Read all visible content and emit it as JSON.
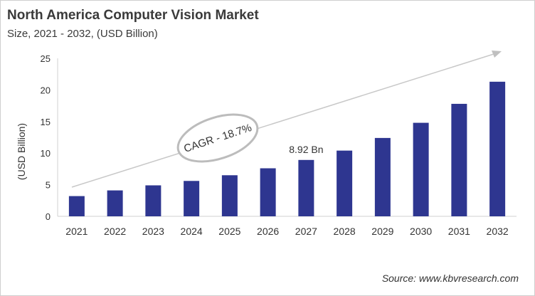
{
  "chart_data": {
    "type": "bar",
    "title": "North America Computer Vision Market",
    "subtitle": "Size, 2021 - 2032, (USD Billion)",
    "xlabel": "",
    "ylabel": "(USD Billion)",
    "categories": [
      "2021",
      "2022",
      "2023",
      "2024",
      "2025",
      "2026",
      "2027",
      "2028",
      "2029",
      "2030",
      "2031",
      "2032"
    ],
    "values": [
      3.2,
      4.1,
      4.9,
      5.6,
      6.5,
      7.6,
      8.92,
      10.4,
      12.4,
      14.8,
      17.8,
      21.3
    ],
    "ylim": [
      0,
      25
    ],
    "yticks": [
      0,
      5,
      10,
      15,
      20,
      25
    ],
    "grid": false,
    "bar_color": "#2e3690",
    "annotations": {
      "data_label": "8.92 Bn",
      "data_label_category": "2027",
      "cagr": "CAGR - 18.7%"
    },
    "source": "Source: www.kbvresearch.com"
  }
}
